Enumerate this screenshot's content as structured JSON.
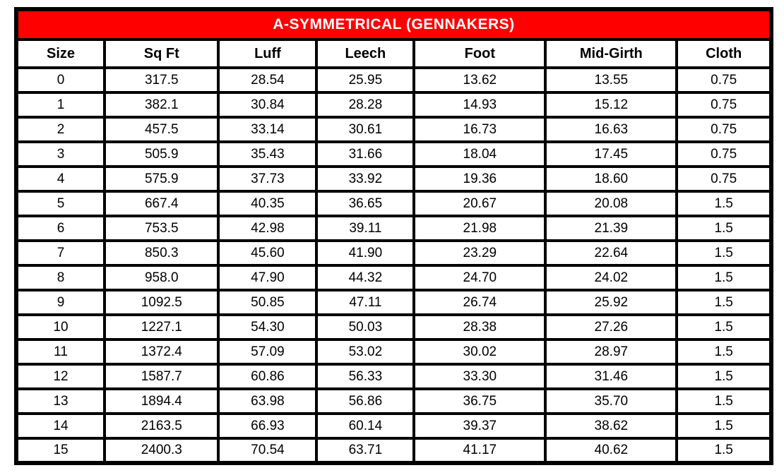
{
  "title": "A-SYMMETRICAL (GENNAKERS)",
  "colors": {
    "title_bg": "#fe0000",
    "title_text": "#ffffff",
    "border": "#000000",
    "cell_bg": "#ffffff"
  },
  "table": {
    "headers": [
      "Size",
      "Sq Ft",
      "Luff",
      "Leech",
      "Foot",
      "Mid-Girth",
      "Cloth"
    ],
    "rows": [
      [
        "0",
        "317.5",
        "28.54",
        "25.95",
        "13.62",
        "13.55",
        "0.75"
      ],
      [
        "1",
        "382.1",
        "30.84",
        "28.28",
        "14.93",
        "15.12",
        "0.75"
      ],
      [
        "2",
        "457.5",
        "33.14",
        "30.61",
        "16.73",
        "16.63",
        "0.75"
      ],
      [
        "3",
        "505.9",
        "35.43",
        "31.66",
        "18.04",
        "17.45",
        "0.75"
      ],
      [
        "4",
        "575.9",
        "37.73",
        "33.92",
        "19.36",
        "18.60",
        "0.75"
      ],
      [
        "5",
        "667.4",
        "40.35",
        "36.65",
        "20.67",
        "20.08",
        "1.5"
      ],
      [
        "6",
        "753.5",
        "42.98",
        "39.11",
        "21.98",
        "21.39",
        "1.5"
      ],
      [
        "7",
        "850.3",
        "45.60",
        "41.90",
        "23.29",
        "22.64",
        "1.5"
      ],
      [
        "8",
        "958.0",
        "47.90",
        "44.32",
        "24.70",
        "24.02",
        "1.5"
      ],
      [
        "9",
        "1092.5",
        "50.85",
        "47.11",
        "26.74",
        "25.92",
        "1.5"
      ],
      [
        "10",
        "1227.1",
        "54.30",
        "50.03",
        "28.38",
        "27.26",
        "1.5"
      ],
      [
        "11",
        "1372.4",
        "57.09",
        "53.02",
        "30.02",
        "28.97",
        "1.5"
      ],
      [
        "12",
        "1587.7",
        "60.86",
        "56.33",
        "33.30",
        "31.46",
        "1.5"
      ],
      [
        "13",
        "1894.4",
        "63.98",
        "56.86",
        "36.75",
        "35.70",
        "1.5"
      ],
      [
        "14",
        "2163.5",
        "66.93",
        "60.14",
        "39.37",
        "38.62",
        "1.5"
      ],
      [
        "15",
        "2400.3",
        "70.54",
        "63.71",
        "41.17",
        "40.62",
        "1.5"
      ]
    ]
  }
}
